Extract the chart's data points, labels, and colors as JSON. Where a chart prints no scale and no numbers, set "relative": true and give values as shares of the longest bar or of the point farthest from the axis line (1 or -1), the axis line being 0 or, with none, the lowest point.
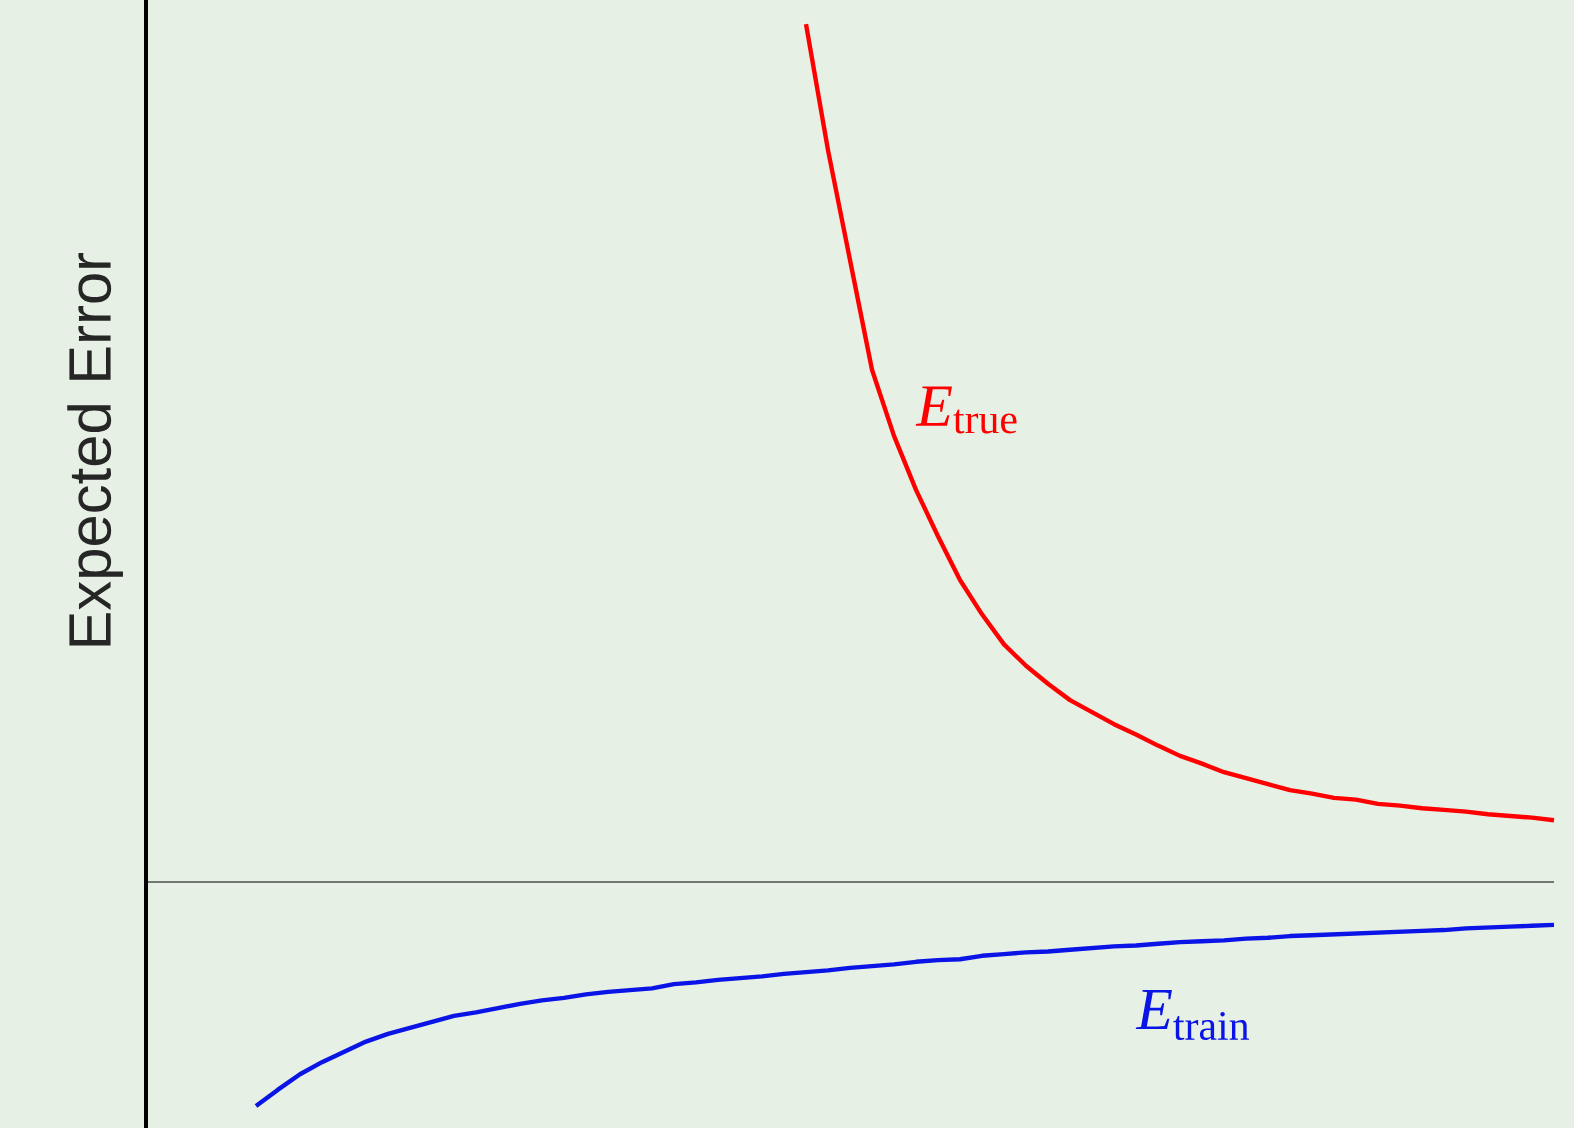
{
  "chart_data": {
    "type": "line",
    "relative": true,
    "ylabel": "Expected Error",
    "categories": [
      null,
      null,
      null,
      null,
      null,
      null,
      null,
      null,
      null,
      null,
      null,
      null,
      null,
      null,
      null,
      null,
      null,
      null,
      null,
      null,
      null,
      null,
      null,
      null,
      null,
      null,
      null,
      null,
      null,
      null,
      null,
      null,
      null,
      null,
      null,
      null,
      null,
      null,
      null,
      null,
      null,
      null,
      null,
      null,
      null,
      null,
      null,
      null,
      null,
      null,
      null,
      null,
      null,
      null,
      null,
      null,
      null,
      null,
      null,
      null,
      null,
      null,
      null,
      null,
      null
    ],
    "series": [
      {
        "name": "*E*$_{true}$",
        "color": "#ff0000",
        "values": [
          null,
          null,
          null,
          null,
          null,
          null,
          null,
          null,
          null,
          null,
          null,
          null,
          null,
          null,
          null,
          null,
          null,
          null,
          null,
          null,
          null,
          null,
          null,
          null,
          null,
          null,
          null,
          null,
          null,
          null,
          1,
          0.853,
          0.725,
          0.597,
          0.52,
          0.457,
          0.403,
          0.352,
          0.312,
          0.277,
          0.252,
          0.231,
          0.212,
          0.198,
          0.184,
          0.172,
          0.159,
          0.147,
          0.138,
          0.128,
          0.121,
          0.114,
          0.107,
          0.103,
          0.098,
          0.096,
          0.091,
          0.089,
          0.086,
          0.084,
          0.082,
          0.079,
          0.077,
          0.075,
          0.072
        ]
      },
      {
        "name": "*E*$_{train}$",
        "color": "#0a14e6",
        "values": [
          null,
          null,
          null,
          null,
          null,
          -0.261,
          -0.242,
          -0.224,
          -0.21,
          -0.198,
          -0.186,
          -0.177,
          -0.17,
          -0.163,
          -0.156,
          -0.152,
          -0.147,
          -0.142,
          -0.138,
          -0.135,
          -0.131,
          -0.128,
          -0.126,
          -0.124,
          -0.119,
          -0.117,
          -0.114,
          -0.112,
          -0.11,
          -0.107,
          -0.105,
          -0.103,
          -0.1,
          -0.098,
          -0.096,
          -0.093,
          -0.091,
          -0.09,
          -0.086,
          -0.084,
          -0.082,
          -0.081,
          -0.079,
          -0.077,
          -0.075,
          -0.074,
          -0.072,
          -0.07,
          -0.069,
          -0.068,
          -0.066,
          -0.065,
          -0.063,
          -0.062,
          -0.061,
          -0.06,
          -0.059,
          -0.058,
          -0.057,
          -0.056,
          -0.054,
          -0.053,
          -0.052,
          -0.051,
          -0.05
        ]
      }
    ]
  }
}
